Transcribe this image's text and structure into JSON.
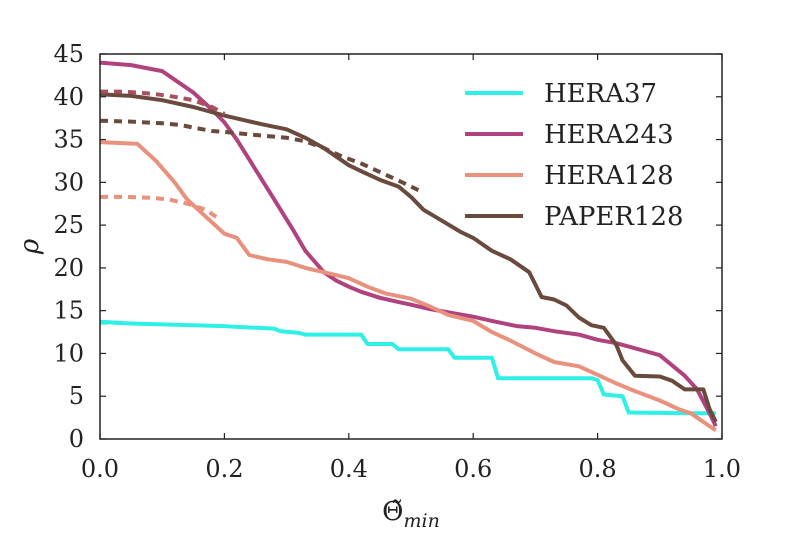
{
  "chart_data": {
    "type": "line",
    "xlabel": "Θ̃",
    "xlabel_sub": "min",
    "ylabel": "ρ",
    "xlim": [
      0.0,
      1.0
    ],
    "ylim": [
      0,
      45
    ],
    "xticks": [
      "0.0",
      "0.2",
      "0.4",
      "0.6",
      "0.8",
      "1.0"
    ],
    "yticks": [
      "0",
      "5",
      "10",
      "15",
      "20",
      "25",
      "30",
      "35",
      "40",
      "45"
    ],
    "grid": false,
    "legend_position": "top-right",
    "series": [
      {
        "name": "HERA37",
        "color": "#2ef0e6",
        "style": "solid",
        "x": [
          0.0,
          0.05,
          0.1,
          0.15,
          0.2,
          0.22,
          0.28,
          0.29,
          0.32,
          0.33,
          0.38,
          0.42,
          0.43,
          0.47,
          0.48,
          0.56,
          0.57,
          0.63,
          0.64,
          0.79,
          0.8,
          0.81,
          0.84,
          0.85,
          0.95,
          0.99
        ],
        "y": [
          13.7,
          13.5,
          13.4,
          13.3,
          13.2,
          13.1,
          12.9,
          12.6,
          12.4,
          12.2,
          12.2,
          12.2,
          11.1,
          11.1,
          10.5,
          10.5,
          9.5,
          9.5,
          7.1,
          7.1,
          6.9,
          5.2,
          5.0,
          3.1,
          3.0,
          3.0
        ]
      },
      {
        "name": "HERA243",
        "color": "#b0427f",
        "style": "solid",
        "x": [
          0.0,
          0.05,
          0.1,
          0.12,
          0.15,
          0.18,
          0.2,
          0.22,
          0.25,
          0.28,
          0.31,
          0.33,
          0.36,
          0.38,
          0.4,
          0.42,
          0.45,
          0.48,
          0.5,
          0.53,
          0.56,
          0.6,
          0.63,
          0.67,
          0.7,
          0.73,
          0.77,
          0.8,
          0.83,
          0.87,
          0.9,
          0.92,
          0.94,
          0.96,
          0.98,
          0.99
        ],
        "y": [
          44.0,
          43.7,
          43.0,
          42.0,
          40.5,
          38.5,
          37.0,
          35.0,
          31.5,
          28.0,
          24.5,
          22.0,
          19.5,
          18.5,
          17.8,
          17.2,
          16.5,
          16.0,
          15.7,
          15.2,
          14.8,
          14.3,
          13.8,
          13.2,
          13.0,
          12.6,
          12.2,
          11.6,
          11.2,
          10.4,
          9.8,
          8.6,
          7.4,
          5.8,
          3.0,
          1.5
        ]
      },
      {
        "name": "HERA128",
        "color": "#e8917c",
        "style": "solid",
        "x": [
          0.0,
          0.06,
          0.09,
          0.12,
          0.14,
          0.17,
          0.2,
          0.22,
          0.24,
          0.27,
          0.3,
          0.33,
          0.36,
          0.4,
          0.43,
          0.46,
          0.5,
          0.53,
          0.56,
          0.6,
          0.63,
          0.66,
          0.7,
          0.73,
          0.77,
          0.8,
          0.83,
          0.86,
          0.9,
          0.93,
          0.95,
          0.97,
          0.99
        ],
        "y": [
          34.7,
          34.5,
          32.5,
          30.0,
          28.0,
          26.0,
          24.0,
          23.5,
          21.5,
          21.0,
          20.7,
          20.0,
          19.5,
          18.8,
          17.8,
          17.0,
          16.4,
          15.5,
          14.5,
          13.8,
          12.5,
          11.5,
          10.0,
          9.0,
          8.5,
          7.5,
          6.5,
          5.6,
          4.5,
          3.5,
          3.0,
          2.0,
          1.0
        ]
      },
      {
        "name": "PAPER128",
        "color": "#6a4a3c",
        "style": "solid",
        "x": [
          0.0,
          0.05,
          0.1,
          0.15,
          0.2,
          0.23,
          0.26,
          0.3,
          0.33,
          0.36,
          0.38,
          0.4,
          0.42,
          0.45,
          0.48,
          0.5,
          0.52,
          0.55,
          0.58,
          0.6,
          0.63,
          0.66,
          0.69,
          0.71,
          0.73,
          0.75,
          0.77,
          0.79,
          0.81,
          0.83,
          0.84,
          0.86,
          0.9,
          0.92,
          0.94,
          0.96,
          0.97,
          0.98,
          0.99
        ],
        "y": [
          40.3,
          40.1,
          39.6,
          38.8,
          37.8,
          37.3,
          36.8,
          36.2,
          35.2,
          34.0,
          33.0,
          32.0,
          31.3,
          30.3,
          29.5,
          28.3,
          26.8,
          25.5,
          24.2,
          23.5,
          22.0,
          21.0,
          19.5,
          16.6,
          16.3,
          15.6,
          14.2,
          13.3,
          13.0,
          11.0,
          9.2,
          7.4,
          7.3,
          6.8,
          5.8,
          5.8,
          5.8,
          3.5,
          2.0
        ]
      },
      {
        "name": "",
        "color": "#6a4a3c",
        "style": "dashed",
        "x": [
          0.0,
          0.05,
          0.1,
          0.13,
          0.15,
          0.18,
          0.2,
          0.24,
          0.27,
          0.3,
          0.33,
          0.36,
          0.39,
          0.42,
          0.45,
          0.48,
          0.5,
          0.52
        ],
        "y": [
          37.2,
          37.1,
          36.9,
          36.7,
          36.4,
          36.0,
          35.9,
          35.6,
          35.4,
          35.2,
          34.8,
          34.0,
          33.0,
          32.2,
          31.2,
          30.2,
          29.5,
          28.8
        ]
      },
      {
        "name": "",
        "color": "#a8505e",
        "style": "dashed",
        "x": [
          0.0,
          0.03,
          0.06,
          0.09,
          0.12,
          0.15,
          0.18,
          0.2
        ],
        "y": [
          40.6,
          40.6,
          40.5,
          40.3,
          40.0,
          39.6,
          38.8,
          38.0
        ]
      },
      {
        "name": "",
        "color": "#e8917c",
        "style": "dashed",
        "x": [
          0.0,
          0.04,
          0.08,
          0.11,
          0.14,
          0.17,
          0.19
        ],
        "y": [
          28.3,
          28.3,
          28.2,
          28.0,
          27.5,
          26.8,
          25.8
        ]
      },
      {
        "name": "",
        "color": "#2ef0e6",
        "style": "dashed",
        "x": [
          0.0,
          0.02,
          0.04
        ],
        "y": [
          13.6,
          13.6,
          13.5
        ]
      }
    ]
  }
}
